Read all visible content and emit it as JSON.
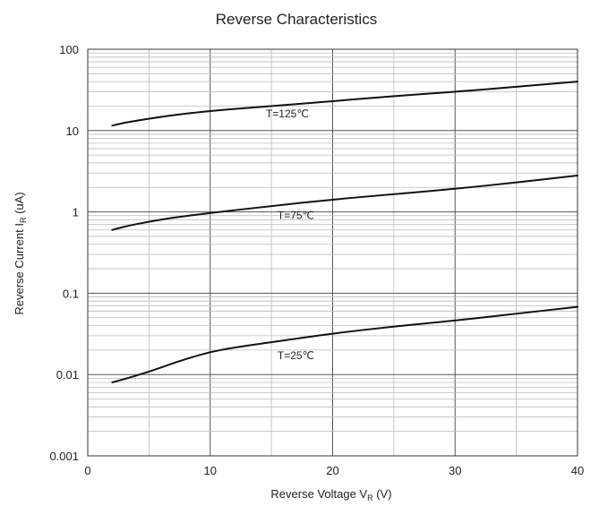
{
  "chart_data": {
    "type": "line",
    "title": "Reverse Characteristics",
    "xlabel": {
      "main": "Reverse Voltage V",
      "sub": "R",
      "unit": " (V)"
    },
    "ylabel": {
      "main": "Reverse Current I",
      "sub": "R",
      "unit": " (uA)"
    },
    "xlim": [
      0,
      40
    ],
    "ylim": [
      0.001,
      100
    ],
    "yscale": "log",
    "grid": true,
    "x_ticks": [
      0,
      10,
      20,
      30,
      40
    ],
    "x_tick_labels": [
      "0",
      "10",
      "20",
      "30",
      "40"
    ],
    "y_ticks": [
      0.001,
      0.01,
      0.1,
      1,
      10,
      100
    ],
    "y_tick_labels": [
      "0.001",
      "0.01",
      "0.1",
      "1",
      "10",
      "100"
    ],
    "line_color": "#111111",
    "series": [
      {
        "name": "T=125℃",
        "x": [
          2,
          3,
          5,
          7,
          10,
          15,
          20,
          25,
          30,
          35,
          40
        ],
        "y": [
          11.5,
          12.5,
          14.0,
          15.5,
          17.5,
          20.0,
          23.0,
          26.5,
          30.0,
          34.5,
          40.0
        ],
        "label_at": [
          16.3,
          14.5
        ]
      },
      {
        "name": "T=75℃",
        "x": [
          2,
          3,
          5,
          7,
          10,
          15,
          20,
          25,
          30,
          35,
          40
        ],
        "y": [
          0.6,
          0.66,
          0.76,
          0.85,
          0.97,
          1.18,
          1.42,
          1.65,
          1.92,
          2.3,
          2.8
        ],
        "label_at": [
          17.0,
          0.82
        ]
      },
      {
        "name": "T=25℃",
        "x": [
          2,
          3,
          5,
          7,
          8,
          10,
          12,
          15,
          20,
          25,
          30,
          35,
          40
        ],
        "y": [
          0.008,
          0.0088,
          0.0108,
          0.0138,
          0.0155,
          0.019,
          0.0215,
          0.025,
          0.032,
          0.039,
          0.046,
          0.056,
          0.068
        ],
        "label_at": [
          17.0,
          0.0155
        ]
      }
    ]
  }
}
